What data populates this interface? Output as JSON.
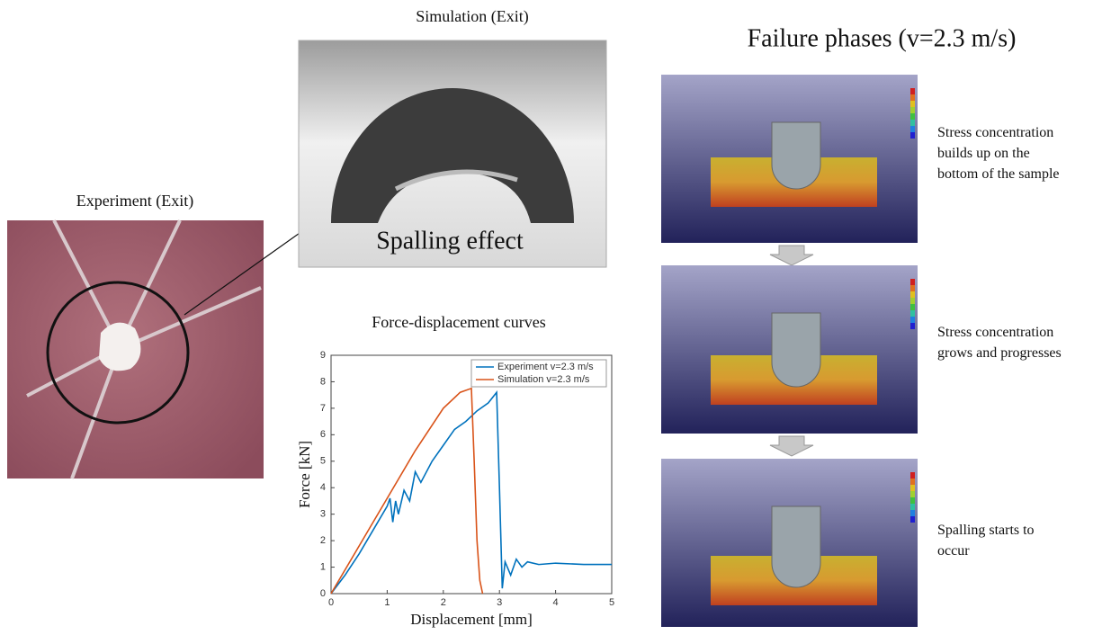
{
  "experiment": {
    "title": "Experiment (Exit)"
  },
  "simulation": {
    "title": "Simulation (Exit)",
    "annotation": "Spalling effect"
  },
  "phases": {
    "title": "Failure phases (v=2.3 m/s)",
    "captions": [
      "Stress concentration builds up on the bottom of the sample",
      "Stress concentration grows and progresses",
      "Spalling starts to occur"
    ]
  },
  "chart_data": {
    "type": "line",
    "title": "Force-displacement curves",
    "x_label": "Displacement [mm]",
    "y_label": "Force [kN]",
    "xlim": [
      0,
      5
    ],
    "xticks": [
      0,
      1,
      2,
      3,
      4,
      5
    ],
    "ylim": [
      0,
      9
    ],
    "yticks": [
      0,
      1,
      2,
      3,
      4,
      5,
      6,
      7,
      8,
      9
    ],
    "legend": "upper-right",
    "grid": false,
    "series": [
      {
        "name": "Experiment v=2.3 m/s",
        "color": "#0072bd",
        "x": [
          0,
          0.25,
          0.5,
          0.75,
          1.0,
          1.05,
          1.1,
          1.15,
          1.2,
          1.3,
          1.4,
          1.5,
          1.6,
          1.8,
          2.0,
          2.2,
          2.4,
          2.6,
          2.8,
          2.95,
          3.0,
          3.05,
          3.1,
          3.2,
          3.3,
          3.4,
          3.5,
          3.7,
          4.0,
          4.5,
          5.0
        ],
        "values": [
          0,
          0.7,
          1.5,
          2.4,
          3.3,
          3.6,
          2.7,
          3.5,
          3.0,
          3.9,
          3.5,
          4.6,
          4.2,
          5.0,
          5.6,
          6.2,
          6.5,
          6.9,
          7.2,
          7.6,
          4.0,
          0.2,
          1.2,
          0.7,
          1.3,
          1.0,
          1.2,
          1.1,
          1.15,
          1.1,
          1.1
        ]
      },
      {
        "name": "Simulation v=2.3 m/s",
        "color": "#d95319",
        "x": [
          0,
          0.5,
          1.0,
          1.5,
          2.0,
          2.3,
          2.5,
          2.55,
          2.6,
          2.65,
          2.7
        ],
        "values": [
          0,
          1.8,
          3.6,
          5.4,
          7.0,
          7.6,
          7.75,
          5.0,
          2.0,
          0.5,
          0
        ]
      }
    ]
  }
}
